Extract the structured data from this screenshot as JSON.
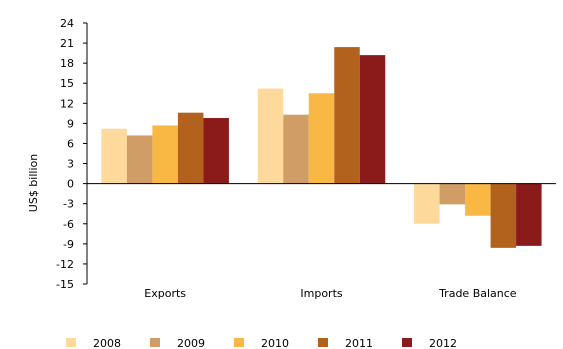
{
  "chart_data": {
    "type": "bar",
    "categories": [
      "Exports",
      "Imports",
      "Trade Balance"
    ],
    "series": [
      {
        "name": "2008",
        "color": "#FDD99B",
        "values": [
          8.2,
          14.2,
          -6.0
        ]
      },
      {
        "name": "2009",
        "color": "#D09D67",
        "values": [
          7.2,
          10.3,
          -3.1
        ]
      },
      {
        "name": "2010",
        "color": "#F9B744",
        "values": [
          8.7,
          13.5,
          -4.8
        ]
      },
      {
        "name": "2011",
        "color": "#B3621E",
        "values": [
          10.6,
          20.4,
          -9.6
        ]
      },
      {
        "name": "2012",
        "color": "#8B1A1A",
        "values": [
          9.8,
          19.2,
          -9.3
        ]
      }
    ],
    "ylabel": "US$ billion",
    "ylim": [
      -15,
      24
    ],
    "yticks": [
      24,
      21,
      18,
      15,
      12,
      9,
      6,
      3,
      0,
      -3,
      -6,
      -9,
      -12,
      -15
    ],
    "grid": false,
    "legend_position": "bottom"
  }
}
